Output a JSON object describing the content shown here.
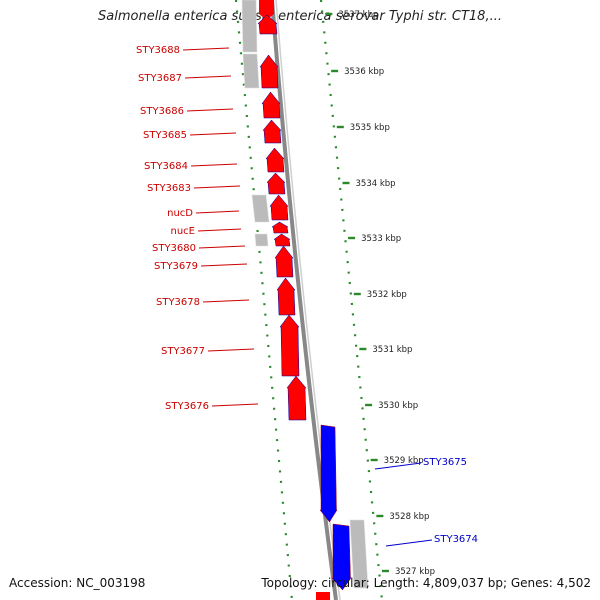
{
  "title": "Salmonella enterica subsp. enterica serovar Typhi str. CT18,...",
  "footer": {
    "accession": "Accession: NC_003198",
    "summary": "Topology: circular; Length: 4,809,037 bp; Genes: 4,502"
  },
  "colors": {
    "forward_gene": "#ff0000",
    "reverse_gene": "#0000ff",
    "other_feature": "#bbbbbb",
    "tick_marks": "#2a8a2a",
    "backbone": "#888888"
  },
  "ticks": [
    {
      "kbp": 3537,
      "label": "3537 kbp"
    },
    {
      "kbp": 3536,
      "label": "3536 kbp"
    },
    {
      "kbp": 3535,
      "label": "3535 kbp"
    },
    {
      "kbp": 3534,
      "label": "3534 kbp"
    },
    {
      "kbp": 3533,
      "label": "3533 kbp"
    },
    {
      "kbp": 3532,
      "label": "3532 kbp"
    },
    {
      "kbp": 3531,
      "label": "3531 kbp"
    },
    {
      "kbp": 3530,
      "label": "3530 kbp"
    },
    {
      "kbp": 3529,
      "label": "3529 kbp"
    },
    {
      "kbp": 3528,
      "label": "3528 kbp"
    },
    {
      "kbp": 3527,
      "label": "3527 kbp"
    }
  ],
  "genes_forward": [
    {
      "name": "STY3688"
    },
    {
      "name": "STY3687"
    },
    {
      "name": "STY3686"
    },
    {
      "name": "STY3685"
    },
    {
      "name": "STY3684"
    },
    {
      "name": "STY3683"
    },
    {
      "name": "nucD"
    },
    {
      "name": "nucE"
    },
    {
      "name": "STY3680"
    },
    {
      "name": "STY3679"
    },
    {
      "name": "STY3678"
    },
    {
      "name": "STY3677"
    },
    {
      "name": "STY3676"
    }
  ],
  "genes_reverse": [
    {
      "name": "STY3675"
    },
    {
      "name": "STY3674"
    }
  ]
}
